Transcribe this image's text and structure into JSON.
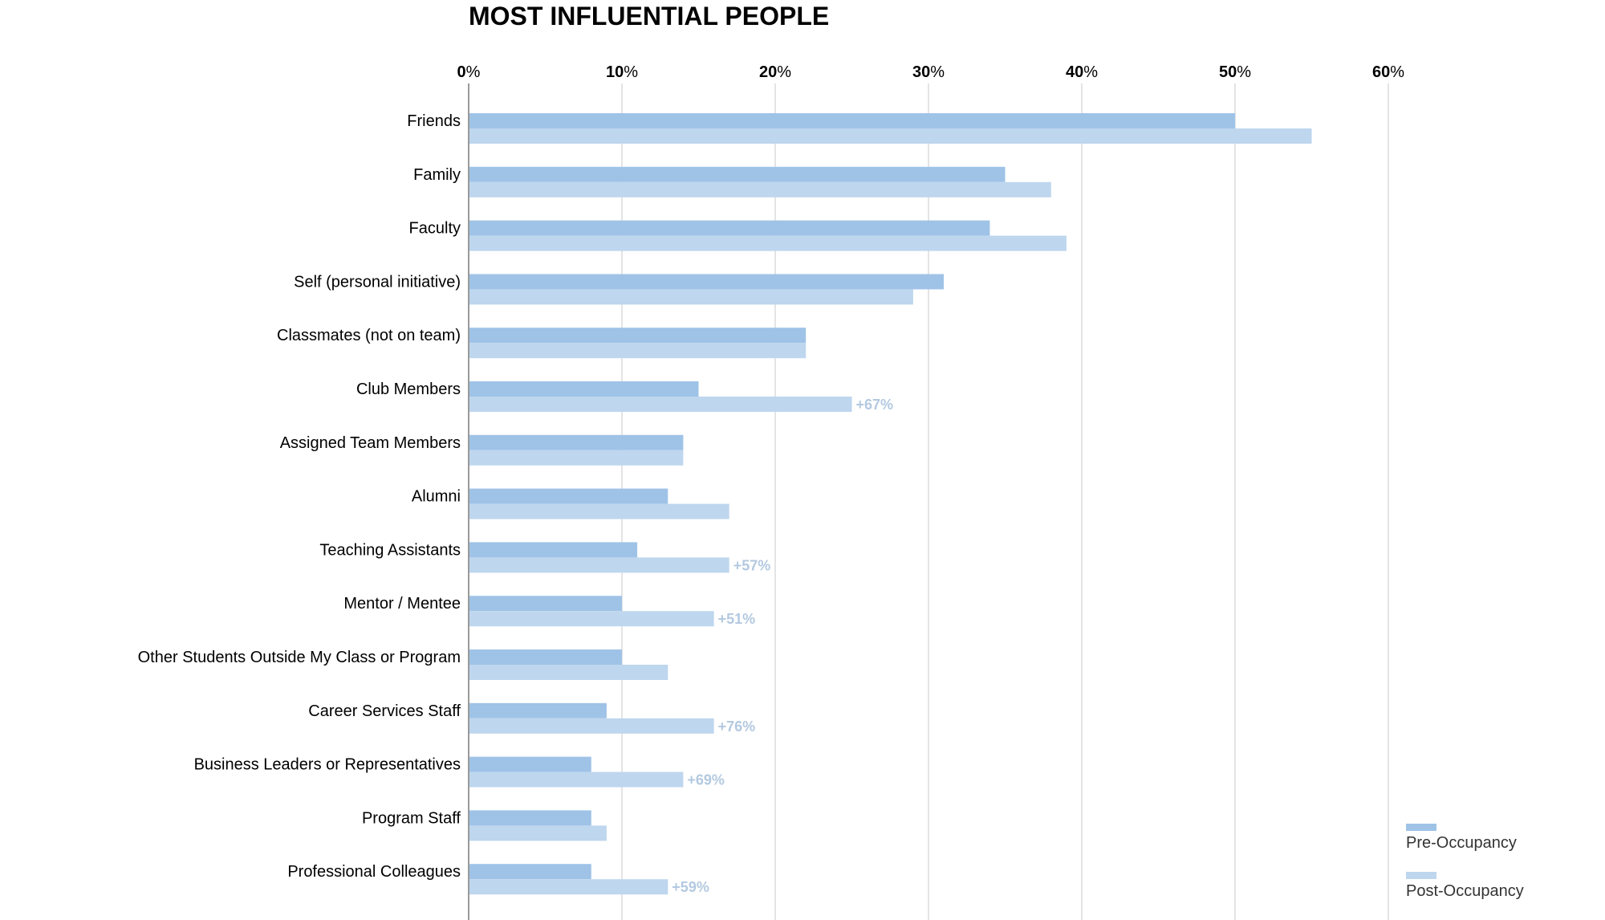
{
  "chart_data": {
    "type": "bar",
    "orientation": "horizontal",
    "title": "MOST INFLUENTIAL PEOPLE",
    "xlim": [
      0,
      60
    ],
    "x_ticks": [
      0,
      10,
      20,
      30,
      40,
      50,
      60
    ],
    "tick_suffix": "%",
    "grid": true,
    "legend_position": "bottom-right",
    "categories": [
      "Friends",
      "Family",
      "Faculty",
      "Self (personal initiative)",
      "Classmates (not on team)",
      "Club Members",
      "Assigned Team Members",
      "Alumni",
      "Teaching Assistants",
      "Mentor / Mentee",
      "Other Students Outside My Class or Program",
      "Career Services Staff",
      "Business Leaders or Representatives",
      "Program Staff",
      "Professional Colleagues"
    ],
    "series": [
      {
        "name": "Pre-Occupancy",
        "color": "#9fc3e7",
        "values": [
          50,
          35,
          34,
          31,
          22,
          15,
          14,
          13,
          11,
          10,
          10,
          9,
          8,
          8,
          8
        ]
      },
      {
        "name": "Post-Occupancy",
        "color": "#bed6ee",
        "values": [
          55,
          38,
          39,
          29,
          22,
          25,
          14,
          17,
          17,
          16,
          13,
          16,
          14,
          9,
          13
        ]
      }
    ],
    "annotations": [
      "",
      "",
      "",
      "",
      "",
      "+67%",
      "",
      "",
      "+57%",
      "+51%",
      "",
      "+76%",
      "+69%",
      "",
      "+59%"
    ],
    "annotation_color": "#b3c9e0"
  }
}
